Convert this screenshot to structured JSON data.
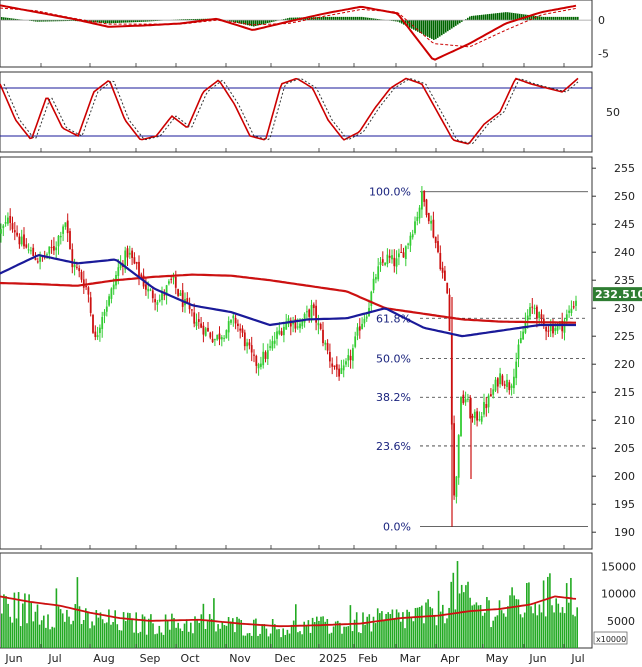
{
  "chart_data": [
    {
      "type": "bar",
      "panel": "macd",
      "y_ticks": [
        "0",
        "-5"
      ],
      "ylim": [
        -7,
        3
      ],
      "series": [
        {
          "color": "#cc0000",
          "values_at_months": [
            2.2,
            1.2,
            0.2,
            -1.0,
            -0.8,
            -0.5,
            0.2,
            -1.5,
            -0.2,
            1.0,
            2.0,
            1.0,
            -6.0,
            -3.5,
            -0.5,
            1.2,
            2.2
          ]
        },
        {
          "color": "#cc0000",
          "style": "dashed",
          "values_at_months": [
            1.8,
            1.4,
            0.3,
            -0.6,
            -0.6,
            -0.6,
            0.0,
            -0.7,
            -0.5,
            0.6,
            1.6,
            1.2,
            -3.5,
            -4.0,
            -1.5,
            0.8,
            1.8
          ]
        }
      ],
      "histogram_color": "#006600"
    },
    {
      "type": "line",
      "panel": "stochastic",
      "y_ticks": [
        "50"
      ],
      "ylim": [
        0,
        100
      ],
      "bands": [
        80,
        20
      ],
      "series": [
        {
          "color": "#cc0000",
          "style": "solid"
        },
        {
          "color": "#333333",
          "style": "dotted"
        }
      ]
    },
    {
      "type": "candlestick",
      "panel": "price",
      "ylim": [
        187,
        257
      ],
      "y_ticks": [
        "255",
        "250",
        "245",
        "240",
        "235",
        "230",
        "225",
        "220",
        "215",
        "210",
        "205",
        "200",
        "195",
        "190"
      ],
      "last_price_label": "232.5100",
      "months_x": [
        "Jun",
        "Jul",
        "Aug",
        "Sep",
        "Oct",
        "Nov",
        "Dec",
        "2025",
        "Feb",
        "Mar",
        "Apr",
        "May",
        "Jun",
        "Jul"
      ],
      "fibonacci": [
        {
          "label": "100.0%",
          "value": 250.8
        },
        {
          "label": "61.8%",
          "value": 228.2
        },
        {
          "label": "50.0%",
          "value": 221.0
        },
        {
          "label": "38.2%",
          "value": 214.1
        },
        {
          "label": "23.6%",
          "value": 205.4
        },
        {
          "label": "0.0%",
          "value": 191.0
        }
      ],
      "moving_averages": [
        {
          "color": "#cc1111",
          "anchors": [
            234.5,
            234.3,
            234.0,
            235.0,
            235.6,
            236.0,
            235.8,
            235.0,
            234.0,
            233.0,
            230.0,
            229.0,
            228.0,
            227.6,
            227.5,
            227.4
          ]
        },
        {
          "color": "#1a1a99",
          "anchors": [
            236.2,
            239.5,
            238.0,
            238.7,
            233.5,
            230.5,
            229.3,
            227.0,
            228.0,
            228.2,
            230.0,
            226.5,
            225.0,
            226.0,
            227.0,
            227.0
          ]
        }
      ],
      "candles_up_color": "#33cc33",
      "candles_down_color": "#cc1111",
      "price_path_anchors": [
        [
          0,
          243.5
        ],
        [
          10,
          246.0
        ],
        [
          20,
          242.0
        ],
        [
          30,
          240.0
        ],
        [
          40,
          238.5
        ],
        [
          55,
          241.0
        ],
        [
          65,
          246.0
        ],
        [
          72,
          238.0
        ],
        [
          80,
          236.0
        ],
        [
          88,
          233.0
        ],
        [
          95,
          224.0
        ],
        [
          102,
          229.0
        ],
        [
          110,
          232.0
        ],
        [
          118,
          237.0
        ],
        [
          128,
          240.0
        ],
        [
          138,
          236.5
        ],
        [
          148,
          233.0
        ],
        [
          160,
          231.5
        ],
        [
          172,
          235.0
        ],
        [
          180,
          232.0
        ],
        [
          190,
          229.0
        ],
        [
          200,
          227.0
        ],
        [
          215,
          224.5
        ],
        [
          225,
          226.0
        ],
        [
          235,
          228.0
        ],
        [
          245,
          224.0
        ],
        [
          255,
          220.0
        ],
        [
          268,
          222.0
        ],
        [
          278,
          225.5
        ],
        [
          288,
          228.0
        ],
        [
          300,
          227.0
        ],
        [
          312,
          230.0
        ],
        [
          322,
          225.0
        ],
        [
          332,
          220.0
        ],
        [
          342,
          218.0
        ],
        [
          352,
          222.0
        ],
        [
          360,
          227.0
        ],
        [
          368,
          230.0
        ],
        [
          376,
          236.0
        ],
        [
          386,
          239.0
        ],
        [
          396,
          238.0
        ],
        [
          406,
          241.0
        ],
        [
          416,
          246.0
        ],
        [
          422,
          250.0
        ],
        [
          430,
          246.0
        ],
        [
          438,
          240.0
        ],
        [
          444,
          235.0
        ],
        [
          448,
          232.0
        ],
        [
          451,
          220.0
        ],
        [
          453,
          196.0
        ],
        [
          456,
          198.0
        ],
        [
          460,
          213.0
        ],
        [
          466,
          214.0
        ],
        [
          472,
          210.0
        ],
        [
          480,
          211.0
        ],
        [
          490,
          214.0
        ],
        [
          500,
          218.0
        ],
        [
          510,
          216.0
        ],
        [
          518,
          222.0
        ],
        [
          526,
          228.0
        ],
        [
          534,
          230.5
        ],
        [
          542,
          227.0
        ],
        [
          552,
          226.5
        ],
        [
          562,
          227.0
        ],
        [
          570,
          229.5
        ],
        [
          577,
          232.0
        ]
      ]
    },
    {
      "type": "bar",
      "panel": "volume",
      "y_ticks": [
        "15000",
        "10000",
        "5000"
      ],
      "ylim": [
        0,
        17500
      ],
      "unit_label": "x10000",
      "bar_color": "#22aa22",
      "ma_color": "#cc1111",
      "ma_anchors": [
        [
          0,
          9500
        ],
        [
          30,
          8500
        ],
        [
          60,
          7800
        ],
        [
          90,
          6500
        ],
        [
          120,
          5500
        ],
        [
          150,
          5000
        ],
        [
          200,
          5200
        ],
        [
          240,
          4500
        ],
        [
          280,
          4000
        ],
        [
          320,
          4200
        ],
        [
          360,
          4500
        ],
        [
          400,
          5500
        ],
        [
          440,
          6000
        ],
        [
          470,
          6800
        ],
        [
          500,
          7200
        ],
        [
          530,
          8000
        ],
        [
          555,
          9500
        ],
        [
          578,
          9000
        ]
      ],
      "volume_path_anchors": [
        [
          0,
          8000
        ],
        [
          30,
          7500
        ],
        [
          60,
          6500
        ],
        [
          90,
          5500
        ],
        [
          120,
          5000
        ],
        [
          150,
          4600
        ],
        [
          200,
          4800
        ],
        [
          240,
          4300
        ],
        [
          280,
          3900
        ],
        [
          320,
          4200
        ],
        [
          360,
          4800
        ],
        [
          400,
          5800
        ],
        [
          430,
          6500
        ],
        [
          445,
          9000
        ],
        [
          455,
          12000
        ],
        [
          470,
          8000
        ],
        [
          500,
          7500
        ],
        [
          530,
          9000
        ],
        [
          560,
          10500
        ],
        [
          578,
          9500
        ]
      ]
    }
  ]
}
